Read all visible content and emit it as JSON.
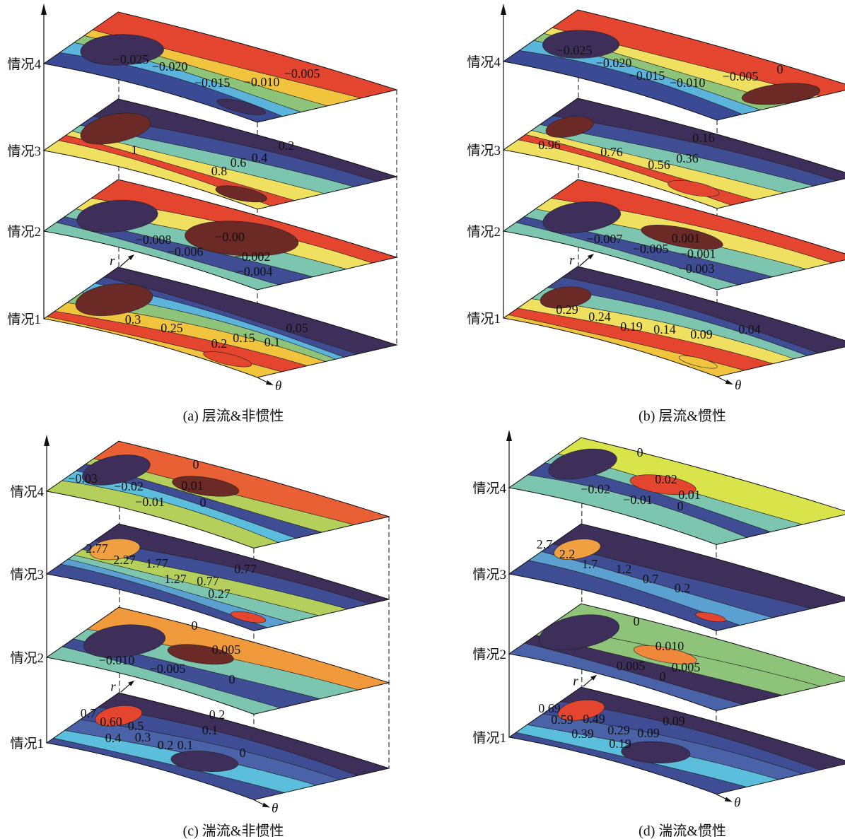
{
  "axis": {
    "r": "r",
    "theta": "θ"
  },
  "chart_data": [
    {
      "type": "contour",
      "caption": "(a) 层流&非惯性",
      "layers": [
        {
          "label": "情况4",
          "colors": [
            "#3a4a94",
            "#5ab4dc",
            "#8ec37a",
            "#f0c43c",
            "#e4452f"
          ],
          "core_color": "#3d2f5a",
          "spot_color": "#3d2f5a",
          "contour_labels": [
            "−0.025",
            "−0.020",
            "−0.015",
            "−0.010",
            "−0.005"
          ]
        },
        {
          "label": "情况3",
          "colors": [
            "#f0e060",
            "#e4452f",
            "#f0e060",
            "#7cc6b0",
            "#3e4d94",
            "#3d2f5a"
          ],
          "core_color": "#6b2a26",
          "spot_color": "#6b2a26",
          "contour_labels": [
            "1",
            "0.8",
            "0.6",
            "0.4",
            "0.2"
          ]
        },
        {
          "label": "情况2",
          "colors": [
            "#7cc6b0",
            "#3e4d94",
            "#7cc6b0",
            "#f0e060",
            "#e4452f"
          ],
          "core_color": "#3d2f5a",
          "spot_color": "#6b2a26",
          "contour_labels": [
            "−0.008",
            "−0.006",
            "−0.00",
            "−0.002",
            "−0.004"
          ]
        },
        {
          "label": "情况1",
          "colors": [
            "#f0c43c",
            "#e4452f",
            "#f0c43c",
            "#8ec37a",
            "#5ab4dc",
            "#3e4d94",
            "#3d2f5a"
          ],
          "core_color": "#6b2a26",
          "spot_color": "#e4452f",
          "contour_labels": [
            "0.3",
            "0.25",
            "0.2",
            "0.15",
            "0.1",
            "0.05"
          ]
        }
      ]
    },
    {
      "type": "contour",
      "caption": "(b) 层流&惯性",
      "layers": [
        {
          "label": "情况4",
          "colors": [
            "#3a4a94",
            "#5ab4dc",
            "#8ec37a",
            "#f0e060",
            "#e4452f"
          ],
          "core_color": "#3d2f5a",
          "spot_color": "#6b2a26",
          "contour_labels": [
            "−0.025",
            "−0.020",
            "−0.015",
            "−0.010",
            "−0.005",
            "0"
          ]
        },
        {
          "label": "情况3",
          "colors": [
            "#f0e060",
            "#e4452f",
            "#f0e060",
            "#7cc6b0",
            "#3e4d94",
            "#3d2f5a"
          ],
          "core_color": "#6b2a26",
          "spot_color": "#e4452f",
          "contour_labels": [
            "0.96",
            "0.76",
            "0.56",
            "0.36",
            "0.16"
          ]
        },
        {
          "label": "情况2",
          "colors": [
            "#7cc6b0",
            "#3e4d94",
            "#7cc6b0",
            "#f0e060",
            "#e4452f"
          ],
          "core_color": "#3d2f5a",
          "spot_color": "#6b2a26",
          "contour_labels": [
            "−0.007",
            "−0.005",
            "0.001",
            "−0.001",
            "−0.003"
          ]
        },
        {
          "label": "情况1",
          "colors": [
            "#f0c43c",
            "#e4452f",
            "#f0e060",
            "#7cc6b0",
            "#3e4d94",
            "#3d2f5a"
          ],
          "core_color": "#6b2a26",
          "spot_color": "#f0c43c",
          "contour_labels": [
            "0.29",
            "0.24",
            "0.19",
            "0.14",
            "0.09",
            "0.04"
          ]
        }
      ]
    },
    {
      "type": "contour",
      "caption": "(c) 湍流&非惯性",
      "layers": [
        {
          "label": "情况4",
          "colors": [
            "#b5d05a",
            "#5abedc",
            "#3e4d94",
            "#b5d05a",
            "#e86034"
          ],
          "core_color": "#3d2f5a",
          "spot_color": "#6b2a26",
          "contour_labels": [
            "−0.03",
            "−0.02",
            "0.01",
            "0",
            "−0.01",
            "0"
          ]
        },
        {
          "label": "情况3",
          "colors": [
            "#3e4d94",
            "#5aa0d0",
            "#7cc6b0",
            "#b5d05a",
            "#3e4d94",
            "#3d2f5a"
          ],
          "core_color": "#f0a040",
          "spot_color": "#e4452f",
          "contour_labels": [
            "2.77",
            "2.27",
            "1.77",
            "1.27",
            "0.77",
            "0.77",
            "0.27"
          ]
        },
        {
          "label": "情况2",
          "colors": [
            "#7cc6b0",
            "#3e4d94",
            "#7cc6b0",
            "#f09a3c"
          ],
          "core_color": "#3d2f5a",
          "spot_color": "#6b2a26",
          "contour_labels": [
            "0",
            "0.005",
            "−0.010",
            "−0.005",
            "0"
          ]
        },
        {
          "label": "情况1",
          "colors": [
            "#3e4d94",
            "#5abedc",
            "#4a62a8",
            "#3e4d94",
            "#3d2f5a"
          ],
          "core_color": "#e4452f",
          "spot_color": "#3d2f5a",
          "contour_labels": [
            "0.7",
            "0.60",
            "0.5",
            "0.4",
            "0.3",
            "0.2",
            "0.1",
            "0.2",
            "0.1",
            "0"
          ]
        }
      ]
    },
    {
      "type": "contour",
      "caption": "(d) 湍流&惯性",
      "layers": [
        {
          "label": "情况4",
          "colors": [
            "#7cc6b0",
            "#3e4d94",
            "#7cc6b0",
            "#d8e44a"
          ],
          "core_color": "#3d2f5a",
          "spot_color": "#e4452f",
          "contour_labels": [
            "0",
            "0.02",
            "0.01",
            "0",
            "−0.02",
            "−0.01"
          ]
        },
        {
          "label": "情况3",
          "colors": [
            "#3e4d94",
            "#5aa0d0",
            "#3e4d94",
            "#3d2f5a"
          ],
          "core_color": "#f0a040",
          "spot_color": "#e4452f",
          "contour_labels": [
            "2.7",
            "2.2",
            "1.7",
            "1.2",
            "0.7",
            "0.2"
          ]
        },
        {
          "label": "情况2",
          "colors": [
            "#4a62a8",
            "#3d2f5a",
            "#8ec37a",
            "#8ec37a"
          ],
          "core_color": "#3d2f5a",
          "spot_color": "#f0883c",
          "contour_labels": [
            "0",
            "0.010",
            "0.005",
            "0.005",
            "0"
          ]
        },
        {
          "label": "情况1",
          "colors": [
            "#3e4d94",
            "#5abedc",
            "#4a62a8",
            "#3e4d94",
            "#3d2f5a"
          ],
          "core_color": "#e4452f",
          "spot_color": "#3d2f5a",
          "contour_labels": [
            "0.69",
            "0.59",
            "0.49",
            "0.39",
            "0.29",
            "0.19",
            "0.09",
            "0.09"
          ]
        }
      ]
    }
  ]
}
